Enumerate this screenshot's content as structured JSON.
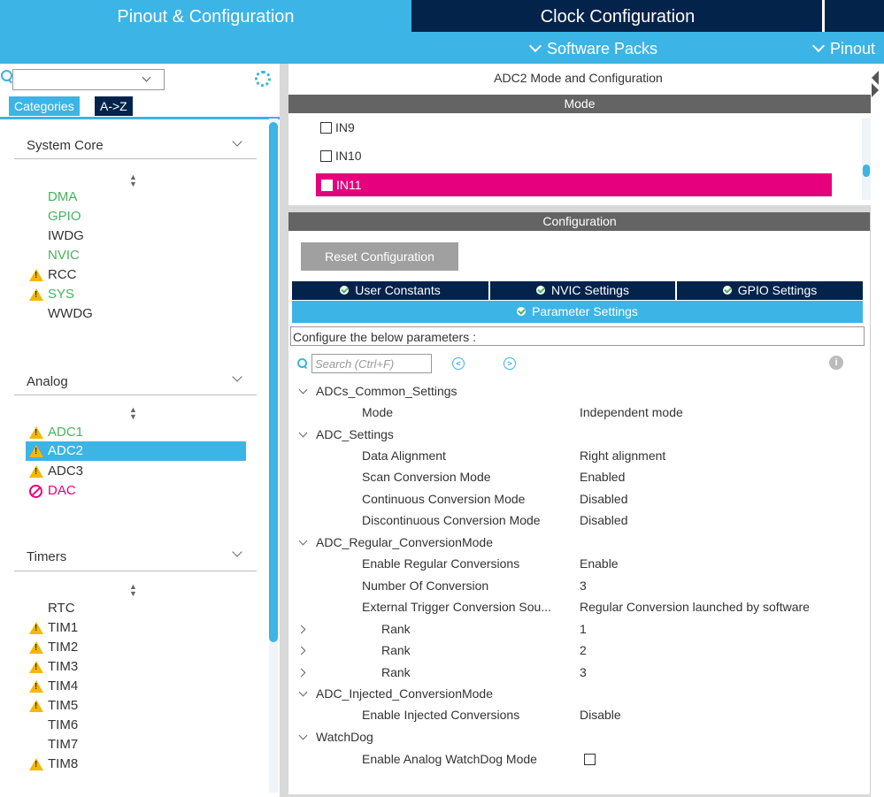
{
  "top_tabs": {
    "pinout": "Pinout & Configuration",
    "clock": "Clock Configuration"
  },
  "sub_menu": {
    "software_packs": "Software Packs",
    "pinout": "Pinout"
  },
  "left": {
    "search_value": "",
    "tabs": {
      "categories": "Categories",
      "az": "A->Z"
    },
    "groups": {
      "system_core": {
        "title": "System Core",
        "items": [
          {
            "label": "DMA",
            "status": "ok"
          },
          {
            "label": "GPIO",
            "status": "ok"
          },
          {
            "label": "IWDG",
            "status": "none"
          },
          {
            "label": "NVIC",
            "status": "ok"
          },
          {
            "label": "RCC",
            "status": "warning"
          },
          {
            "label": "SYS",
            "status": "warning"
          },
          {
            "label": "WWDG",
            "status": "none"
          }
        ]
      },
      "analog": {
        "title": "Analog",
        "items": [
          {
            "label": "ADC1",
            "status": "warning"
          },
          {
            "label": "ADC2",
            "status": "warning",
            "selected": true
          },
          {
            "label": "ADC3",
            "status": "warning"
          },
          {
            "label": "DAC",
            "status": "forbidden"
          }
        ]
      },
      "timers": {
        "title": "Timers",
        "items": [
          {
            "label": "RTC",
            "status": "none"
          },
          {
            "label": "TIM1",
            "status": "warning"
          },
          {
            "label": "TIM2",
            "status": "warning"
          },
          {
            "label": "TIM3",
            "status": "warning"
          },
          {
            "label": "TIM4",
            "status": "warning"
          },
          {
            "label": "TIM5",
            "status": "warning"
          },
          {
            "label": "TIM6",
            "status": "none"
          },
          {
            "label": "TIM7",
            "status": "none"
          },
          {
            "label": "TIM8",
            "status": "warning"
          }
        ]
      }
    }
  },
  "right": {
    "title": "ADC2 Mode and Configuration",
    "mode_header": "Mode",
    "mode_items": [
      {
        "label": "IN9",
        "checked": false
      },
      {
        "label": "IN10",
        "checked": false
      },
      {
        "label": "IN11",
        "checked": false,
        "highlighted": true
      }
    ],
    "config_header": "Configuration",
    "reset_button": "Reset Configuration",
    "tabs": {
      "user_constants": "User Constants",
      "nvic": "NVIC Settings",
      "gpio": "GPIO Settings",
      "parameter": "Parameter Settings"
    },
    "hint": "Configure the below parameters :",
    "search_placeholder": "Search (Ctrl+F)",
    "params": {
      "common": {
        "title": "ADCs_Common_Settings",
        "mode_label": "Mode",
        "mode_value": "Independent mode"
      },
      "adc": {
        "title": "ADC_Settings",
        "rows": [
          {
            "label": "Data Alignment",
            "value": "Right alignment"
          },
          {
            "label": "Scan Conversion Mode",
            "value": "Enabled"
          },
          {
            "label": "Continuous Conversion Mode",
            "value": "Disabled"
          },
          {
            "label": "Discontinuous Conversion Mode",
            "value": "Disabled"
          }
        ]
      },
      "regular": {
        "title": "ADC_Regular_ConversionMode",
        "rows": [
          {
            "label": "Enable Regular Conversions",
            "value": "Enable"
          },
          {
            "label": "Number Of Conversion",
            "value": "3"
          },
          {
            "label": "External Trigger Conversion Sou...",
            "value": "Regular Conversion launched by software"
          }
        ],
        "ranks": [
          {
            "label": "Rank",
            "value": "1"
          },
          {
            "label": "Rank",
            "value": "2"
          },
          {
            "label": "Rank",
            "value": "3"
          }
        ]
      },
      "injected": {
        "title": "ADC_Injected_ConversionMode",
        "label": "Enable Injected Conversions",
        "value": "Disable"
      },
      "watchdog": {
        "title": "WatchDog",
        "label": "Enable Analog WatchDog Mode",
        "checked": false
      }
    }
  },
  "colors": {
    "accent": "#3cb4e6",
    "navy": "#03234b",
    "ok": "#46b45a",
    "warning": "#f5b800",
    "error": "#e6007e",
    "header_gray": "#646464"
  }
}
